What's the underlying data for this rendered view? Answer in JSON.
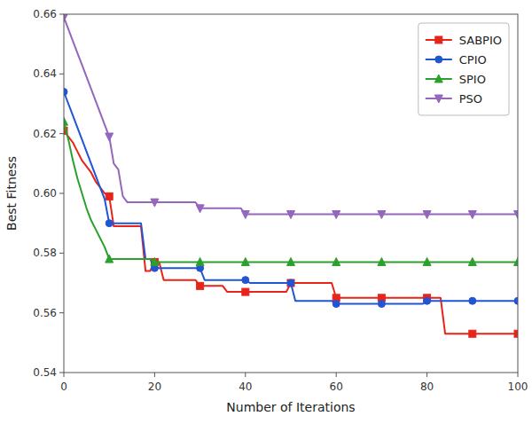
{
  "chart_data": {
    "type": "line",
    "xlabel": "Number of Iterations",
    "ylabel": "Best Fitness",
    "xlim": [
      0,
      100
    ],
    "ylim": [
      0.54,
      0.66
    ],
    "xticks": [
      0,
      20,
      40,
      60,
      80,
      100
    ],
    "yticks": [
      0.54,
      0.56,
      0.58,
      {
        "value": 0.6,
        "label": "0.60"
      },
      0.62,
      0.64,
      0.66
    ],
    "grid": false,
    "legend": "upper right",
    "x": [
      0,
      1,
      2,
      3,
      4,
      5,
      6,
      7,
      8,
      9,
      10,
      11,
      12,
      13,
      14,
      15,
      16,
      17,
      18,
      19,
      20,
      21,
      22,
      23,
      24,
      25,
      26,
      27,
      28,
      29,
      30,
      31,
      32,
      33,
      34,
      35,
      36,
      37,
      38,
      39,
      40,
      41,
      42,
      43,
      44,
      45,
      46,
      47,
      48,
      49,
      50,
      51,
      52,
      53,
      54,
      55,
      56,
      57,
      58,
      59,
      60,
      61,
      62,
      63,
      64,
      65,
      66,
      67,
      68,
      69,
      70,
      71,
      72,
      73,
      74,
      75,
      76,
      77,
      78,
      79,
      80,
      81,
      82,
      83,
      84,
      85,
      86,
      87,
      88,
      89,
      90,
      91,
      92,
      93,
      94,
      95,
      96,
      97,
      98,
      99,
      100
    ],
    "series": [
      {
        "name": "SABPIO",
        "color": "#e8241a",
        "marker": "square",
        "values": [
          0.621,
          0.619,
          0.617,
          0.614,
          0.611,
          0.609,
          0.607,
          0.604,
          0.602,
          0.6,
          0.599,
          0.589,
          0.589,
          0.589,
          0.589,
          0.589,
          0.589,
          0.589,
          0.574,
          0.574,
          0.577,
          0.577,
          0.571,
          0.571,
          0.571,
          0.571,
          0.571,
          0.571,
          0.571,
          0.571,
          0.569,
          0.569,
          0.569,
          0.569,
          0.569,
          0.569,
          0.567,
          0.567,
          0.567,
          0.567,
          0.567,
          0.567,
          0.567,
          0.567,
          0.567,
          0.567,
          0.567,
          0.567,
          0.567,
          0.567,
          0.57,
          0.57,
          0.57,
          0.57,
          0.57,
          0.57,
          0.57,
          0.57,
          0.57,
          0.57,
          0.565,
          0.565,
          0.565,
          0.565,
          0.565,
          0.565,
          0.565,
          0.565,
          0.565,
          0.565,
          0.565,
          0.565,
          0.565,
          0.565,
          0.565,
          0.565,
          0.565,
          0.565,
          0.565,
          0.565,
          0.565,
          0.565,
          0.565,
          0.565,
          0.553,
          0.553,
          0.553,
          0.553,
          0.553,
          0.553,
          0.553,
          0.553,
          0.553,
          0.553,
          0.553,
          0.553,
          0.553,
          0.553,
          0.553,
          0.553,
          0.553
        ]
      },
      {
        "name": "CPIO",
        "color": "#2155d4",
        "marker": "circle",
        "values": [
          0.634,
          0.63,
          0.626,
          0.622,
          0.618,
          0.614,
          0.61,
          0.606,
          0.602,
          0.598,
          0.59,
          0.59,
          0.59,
          0.59,
          0.59,
          0.59,
          0.59,
          0.59,
          0.578,
          0.578,
          0.575,
          0.575,
          0.575,
          0.575,
          0.575,
          0.575,
          0.575,
          0.575,
          0.575,
          0.575,
          0.575,
          0.571,
          0.571,
          0.571,
          0.571,
          0.571,
          0.571,
          0.571,
          0.571,
          0.571,
          0.571,
          0.57,
          0.57,
          0.57,
          0.57,
          0.57,
          0.57,
          0.57,
          0.57,
          0.57,
          0.57,
          0.564,
          0.564,
          0.564,
          0.564,
          0.564,
          0.564,
          0.564,
          0.564,
          0.564,
          0.563,
          0.563,
          0.563,
          0.563,
          0.563,
          0.563,
          0.563,
          0.563,
          0.563,
          0.563,
          0.563,
          0.563,
          0.563,
          0.563,
          0.563,
          0.563,
          0.563,
          0.563,
          0.563,
          0.563,
          0.564,
          0.564,
          0.564,
          0.564,
          0.564,
          0.564,
          0.564,
          0.564,
          0.564,
          0.564,
          0.564,
          0.564,
          0.564,
          0.564,
          0.564,
          0.564,
          0.564,
          0.564,
          0.564,
          0.564,
          0.564
        ]
      },
      {
        "name": "SPIO",
        "color": "#2ca02c",
        "marker": "triangle-up",
        "values": [
          0.624,
          0.618,
          0.611,
          0.605,
          0.6,
          0.595,
          0.591,
          0.588,
          0.585,
          0.582,
          0.578,
          0.578,
          0.578,
          0.578,
          0.578,
          0.578,
          0.578,
          0.578,
          0.578,
          0.578,
          0.577,
          0.577,
          0.577,
          0.577,
          0.577,
          0.577,
          0.577,
          0.577,
          0.577,
          0.577,
          0.577,
          0.577,
          0.577,
          0.577,
          0.577,
          0.577,
          0.577,
          0.577,
          0.577,
          0.577,
          0.577,
          0.577,
          0.577,
          0.577,
          0.577,
          0.577,
          0.577,
          0.577,
          0.577,
          0.577,
          0.577,
          0.577,
          0.577,
          0.577,
          0.577,
          0.577,
          0.577,
          0.577,
          0.577,
          0.577,
          0.577,
          0.577,
          0.577,
          0.577,
          0.577,
          0.577,
          0.577,
          0.577,
          0.577,
          0.577,
          0.577,
          0.577,
          0.577,
          0.577,
          0.577,
          0.577,
          0.577,
          0.577,
          0.577,
          0.577,
          0.577,
          0.577,
          0.577,
          0.577,
          0.577,
          0.577,
          0.577,
          0.577,
          0.577,
          0.577,
          0.577,
          0.577,
          0.577,
          0.577,
          0.577,
          0.577,
          0.577,
          0.577,
          0.577,
          0.577,
          0.577
        ]
      },
      {
        "name": "PSO",
        "color": "#9467bd",
        "marker": "triangle-down",
        "values": [
          0.659,
          0.655,
          0.651,
          0.647,
          0.643,
          0.639,
          0.635,
          0.631,
          0.627,
          0.623,
          0.619,
          0.61,
          0.608,
          0.599,
          0.597,
          0.597,
          0.597,
          0.597,
          0.597,
          0.597,
          0.597,
          0.597,
          0.597,
          0.597,
          0.597,
          0.597,
          0.597,
          0.597,
          0.597,
          0.597,
          0.595,
          0.595,
          0.595,
          0.595,
          0.595,
          0.595,
          0.595,
          0.595,
          0.595,
          0.595,
          0.593,
          0.593,
          0.593,
          0.593,
          0.593,
          0.593,
          0.593,
          0.593,
          0.593,
          0.593,
          0.593,
          0.593,
          0.593,
          0.593,
          0.593,
          0.593,
          0.593,
          0.593,
          0.593,
          0.593,
          0.593,
          0.593,
          0.593,
          0.593,
          0.593,
          0.593,
          0.593,
          0.593,
          0.593,
          0.593,
          0.593,
          0.593,
          0.593,
          0.593,
          0.593,
          0.593,
          0.593,
          0.593,
          0.593,
          0.593,
          0.593,
          0.593,
          0.593,
          0.593,
          0.593,
          0.593,
          0.593,
          0.593,
          0.593,
          0.593,
          0.593,
          0.593,
          0.593,
          0.593,
          0.593,
          0.593,
          0.593,
          0.593,
          0.593,
          0.593,
          0.593
        ]
      }
    ]
  }
}
